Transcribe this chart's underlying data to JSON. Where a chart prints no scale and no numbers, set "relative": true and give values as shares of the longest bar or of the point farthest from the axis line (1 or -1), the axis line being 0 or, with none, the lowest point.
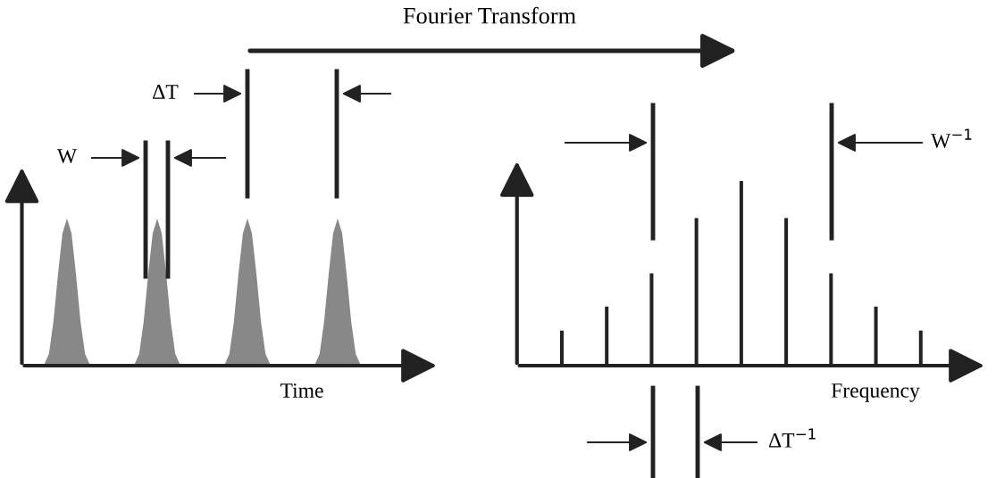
{
  "chart_data": [
    {
      "type": "area",
      "title": "Fourier Transform",
      "xlabel": "Time",
      "relative": true,
      "annotations": [
        "W",
        "ΔT"
      ],
      "categories": [
        null,
        null,
        null,
        null,
        null,
        null,
        null,
        null,
        null,
        null,
        null,
        null,
        null,
        null,
        null,
        null,
        null,
        null,
        null,
        null,
        null,
        null,
        null,
        null,
        null,
        null,
        null,
        null,
        null,
        null,
        null,
        null,
        null,
        null,
        null,
        null,
        null,
        null,
        null,
        null,
        null,
        null,
        null,
        null,
        null,
        null,
        null,
        null,
        null,
        null,
        null,
        null,
        null,
        null,
        null,
        null,
        null,
        null,
        null,
        null,
        null,
        null,
        null,
        null,
        null,
        null,
        null,
        null,
        null,
        null,
        null,
        null,
        null,
        null,
        null,
        null,
        null,
        null,
        null,
        null,
        null,
        null,
        null
      ],
      "series": [
        {
          "color": "#888888",
          "values": [
            0,
            0,
            0,
            0,
            0,
            0.01,
            0.08,
            0.3,
            0.62,
            0.9,
            1,
            0.9,
            0.62,
            0.3,
            0.08,
            0.01,
            0,
            0,
            0,
            0,
            0,
            0,
            0,
            0,
            0,
            0.01,
            0.08,
            0.3,
            0.62,
            0.9,
            1,
            0.9,
            0.62,
            0.3,
            0.08,
            0.01,
            0,
            0,
            0,
            0,
            0,
            0,
            0,
            0,
            0,
            0.01,
            0.08,
            0.3,
            0.62,
            0.9,
            1,
            0.9,
            0.62,
            0.3,
            0.08,
            0.01,
            0,
            0,
            0,
            0,
            0,
            0,
            0,
            0,
            0,
            0.01,
            0.08,
            0.3,
            0.62,
            0.9,
            1,
            0.9,
            0.62,
            0.3,
            0.08,
            0.01,
            0,
            0,
            0,
            0,
            0,
            0,
            0
          ]
        }
      ]
    },
    {
      "type": "bar",
      "xlabel": "Frequency",
      "relative": true,
      "annotations": [
        "W$^{−1}$",
        "ΔT$^{−1}$"
      ],
      "categories": [
        null,
        null,
        null,
        null,
        null,
        null,
        null,
        null,
        null
      ],
      "series": [
        {
          "color": "#222222",
          "values": [
            0.19,
            0.32,
            0.5,
            0.8,
            1,
            0.8,
            0.5,
            0.32,
            0.19
          ]
        }
      ]
    }
  ]
}
